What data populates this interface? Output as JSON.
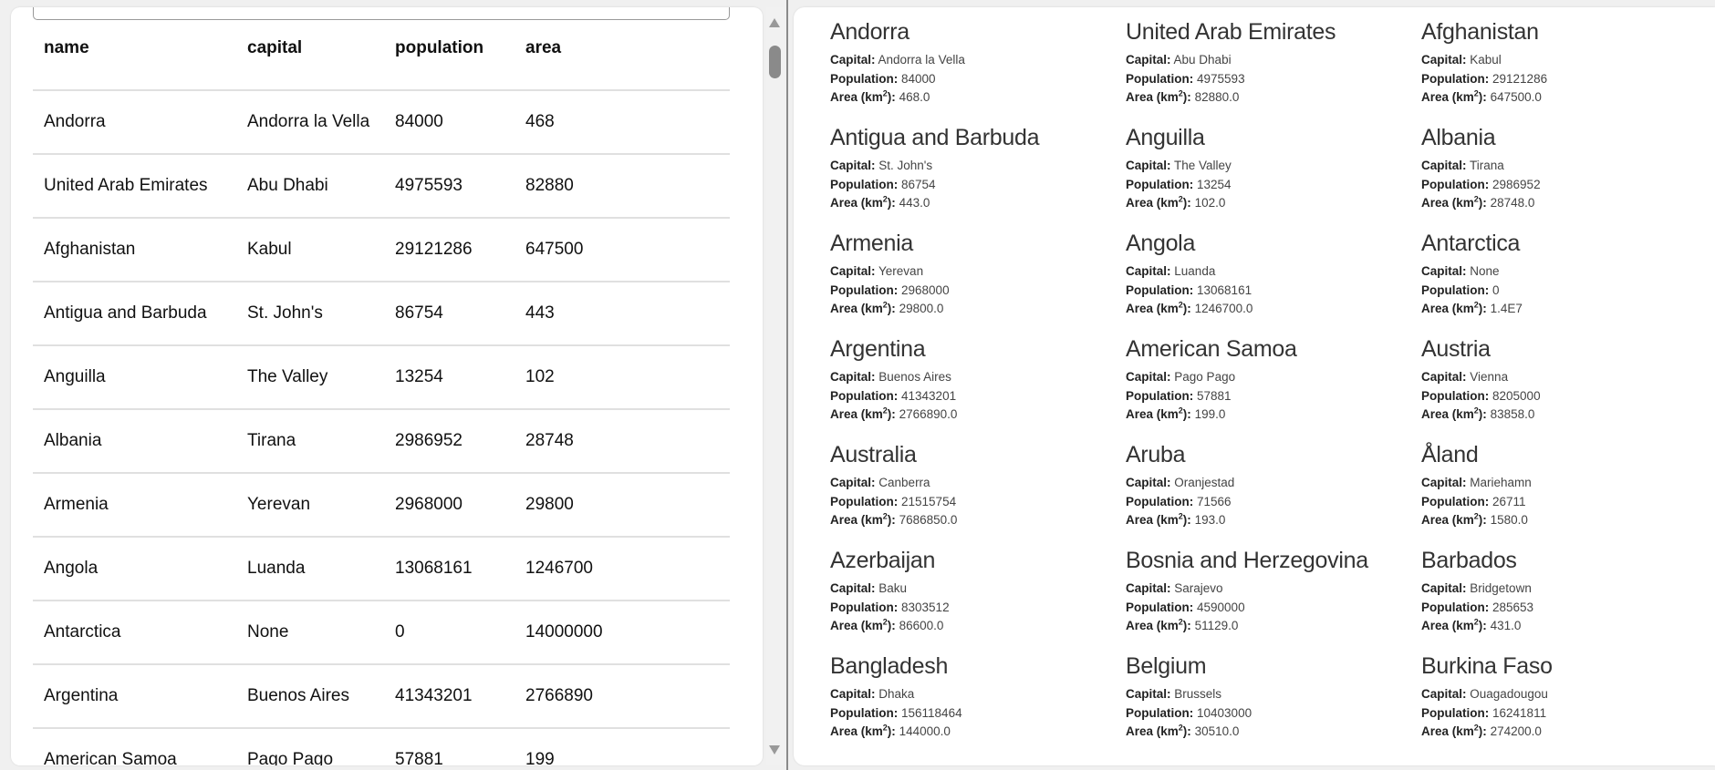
{
  "table": {
    "columns": [
      "name",
      "capital",
      "population",
      "area"
    ],
    "rows": [
      [
        "Andorra",
        "Andorra la Vella",
        "84000",
        "468"
      ],
      [
        "United Arab Emirates",
        "Abu Dhabi",
        "4975593",
        "82880"
      ],
      [
        "Afghanistan",
        "Kabul",
        "29121286",
        "647500"
      ],
      [
        "Antigua and Barbuda",
        "St. John's",
        "86754",
        "443"
      ],
      [
        "Anguilla",
        "The Valley",
        "13254",
        "102"
      ],
      [
        "Albania",
        "Tirana",
        "2986952",
        "28748"
      ],
      [
        "Armenia",
        "Yerevan",
        "2968000",
        "29800"
      ],
      [
        "Angola",
        "Luanda",
        "13068161",
        "1246700"
      ],
      [
        "Antarctica",
        "None",
        "0",
        "14000000"
      ],
      [
        "Argentina",
        "Buenos Aires",
        "41343201",
        "2766890"
      ],
      [
        "American Samoa",
        "Pago Pago",
        "57881",
        "199"
      ]
    ]
  },
  "cards": {
    "labels": {
      "capital": "Capital:",
      "population": "Population:",
      "area": "Area (km",
      "area_sup": "2",
      "area_end": "):"
    },
    "items": [
      {
        "name": "Andorra",
        "capital": "Andorra la Vella",
        "population": "84000",
        "area": "468.0"
      },
      {
        "name": "United Arab Emirates",
        "capital": "Abu Dhabi",
        "population": "4975593",
        "area": "82880.0"
      },
      {
        "name": "Afghanistan",
        "capital": "Kabul",
        "population": "29121286",
        "area": "647500.0"
      },
      {
        "name": "Antigua and Barbuda",
        "capital": "St. John's",
        "population": "86754",
        "area": "443.0"
      },
      {
        "name": "Anguilla",
        "capital": "The Valley",
        "population": "13254",
        "area": "102.0"
      },
      {
        "name": "Albania",
        "capital": "Tirana",
        "population": "2986952",
        "area": "28748.0"
      },
      {
        "name": "Armenia",
        "capital": "Yerevan",
        "population": "2968000",
        "area": "29800.0"
      },
      {
        "name": "Angola",
        "capital": "Luanda",
        "population": "13068161",
        "area": "1246700.0"
      },
      {
        "name": "Antarctica",
        "capital": "None",
        "population": "0",
        "area": "1.4E7"
      },
      {
        "name": "Argentina",
        "capital": "Buenos Aires",
        "population": "41343201",
        "area": "2766890.0"
      },
      {
        "name": "American Samoa",
        "capital": "Pago Pago",
        "population": "57881",
        "area": "199.0"
      },
      {
        "name": "Austria",
        "capital": "Vienna",
        "population": "8205000",
        "area": "83858.0"
      },
      {
        "name": "Australia",
        "capital": "Canberra",
        "population": "21515754",
        "area": "7686850.0"
      },
      {
        "name": "Aruba",
        "capital": "Oranjestad",
        "population": "71566",
        "area": "193.0"
      },
      {
        "name": "Åland",
        "capital": "Mariehamn",
        "population": "26711",
        "area": "1580.0"
      },
      {
        "name": "Azerbaijan",
        "capital": "Baku",
        "population": "8303512",
        "area": "86600.0"
      },
      {
        "name": "Bosnia and Herzegovina",
        "capital": "Sarajevo",
        "population": "4590000",
        "area": "51129.0"
      },
      {
        "name": "Barbados",
        "capital": "Bridgetown",
        "population": "285653",
        "area": "431.0"
      },
      {
        "name": "Bangladesh",
        "capital": "Dhaka",
        "population": "156118464",
        "area": "144000.0"
      },
      {
        "name": "Belgium",
        "capital": "Brussels",
        "population": "10403000",
        "area": "30510.0"
      },
      {
        "name": "Burkina Faso",
        "capital": "Ouagadougou",
        "population": "16241811",
        "area": "274200.0"
      }
    ]
  }
}
